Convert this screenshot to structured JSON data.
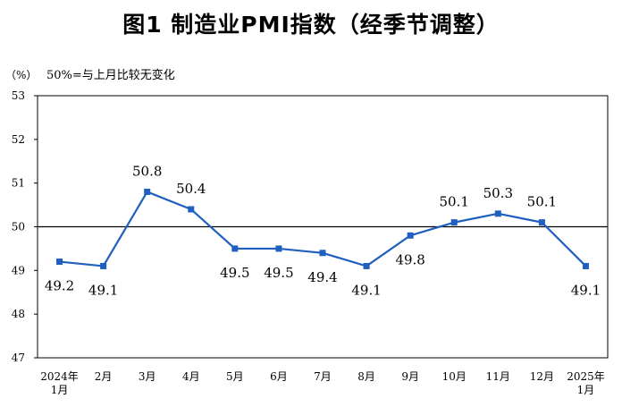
{
  "header": {
    "title": "图1  制造业PMI指数（经季节调整）",
    "unit": "（%）",
    "note": "50%=与上月比较无变化"
  },
  "chart_data": {
    "type": "line",
    "title": "图1  制造业PMI指数（经季节调整）",
    "xlabel": "",
    "ylabel": "（%）",
    "ylim": [
      47,
      53
    ],
    "yticks": [
      47,
      48,
      49,
      50,
      51,
      52,
      53
    ],
    "reference_line": 50,
    "grid": false,
    "categories": [
      [
        "2024年",
        "1月"
      ],
      [
        "2月"
      ],
      [
        "3月"
      ],
      [
        "4月"
      ],
      [
        "5月"
      ],
      [
        "6月"
      ],
      [
        "7月"
      ],
      [
        "8月"
      ],
      [
        "9月"
      ],
      [
        "10月"
      ],
      [
        "11月"
      ],
      [
        "12月"
      ],
      [
        "2025年",
        "1月"
      ]
    ],
    "series": [
      {
        "values": [
          49.2,
          49.1,
          50.8,
          50.4,
          49.5,
          49.5,
          49.4,
          49.1,
          49.8,
          50.1,
          50.3,
          50.1,
          49.1
        ],
        "labels": [
          "49.2",
          "49.1",
          "50.8",
          "50.4",
          "49.5",
          "49.5",
          "49.4",
          "49.1",
          "49.8",
          "50.1",
          "50.3",
          "50.1",
          "49.1"
        ],
        "label_pos": [
          "below",
          "below",
          "above",
          "above",
          "below",
          "below",
          "below",
          "below",
          "below",
          "above",
          "above",
          "above",
          "below"
        ],
        "color": "#1f5fbf"
      }
    ]
  }
}
